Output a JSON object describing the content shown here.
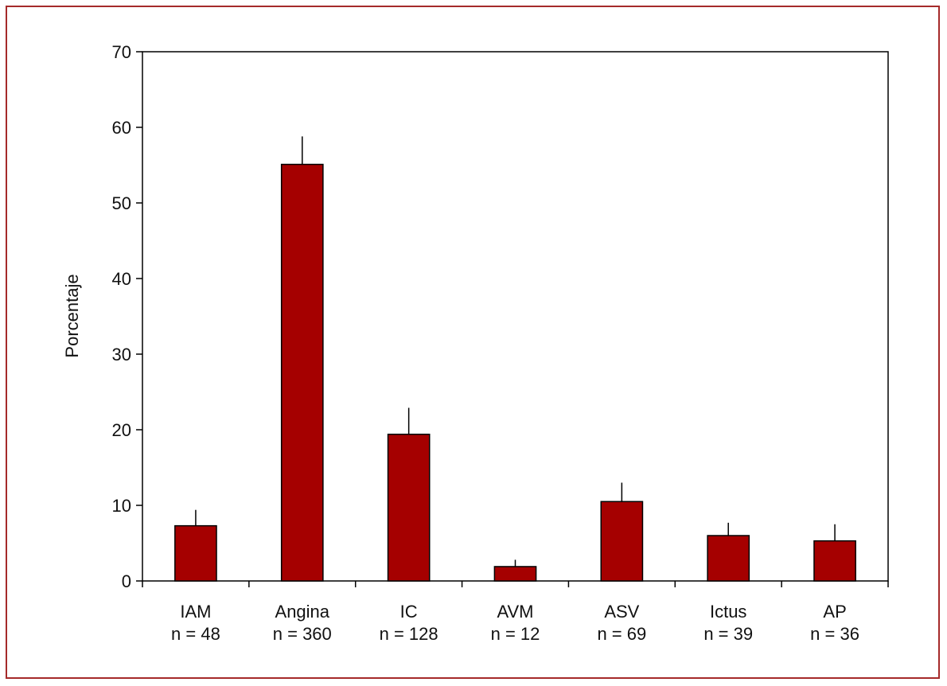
{
  "chart_data": {
    "type": "bar",
    "ylabel": "Porcentaje",
    "xlabel": "",
    "ylim": [
      0,
      70
    ],
    "yticks": [
      0,
      10,
      20,
      30,
      40,
      50,
      60,
      70
    ],
    "categories": [
      "IAM",
      "Angina",
      "IC",
      "AVM",
      "ASV",
      "Ictus",
      "AP"
    ],
    "n_labels": [
      "n = 48",
      "n = 360",
      "n = 128",
      "n = 12",
      "n = 69",
      "n = 39",
      "n = 36"
    ],
    "values": [
      7.3,
      55.1,
      19.4,
      1.9,
      10.5,
      6.0,
      5.3
    ],
    "error_upper": [
      9.4,
      58.8,
      22.9,
      2.8,
      13.0,
      7.7,
      7.5
    ],
    "bar_color": "#a50000",
    "frame_color": "#a52a2a",
    "grid": false
  }
}
